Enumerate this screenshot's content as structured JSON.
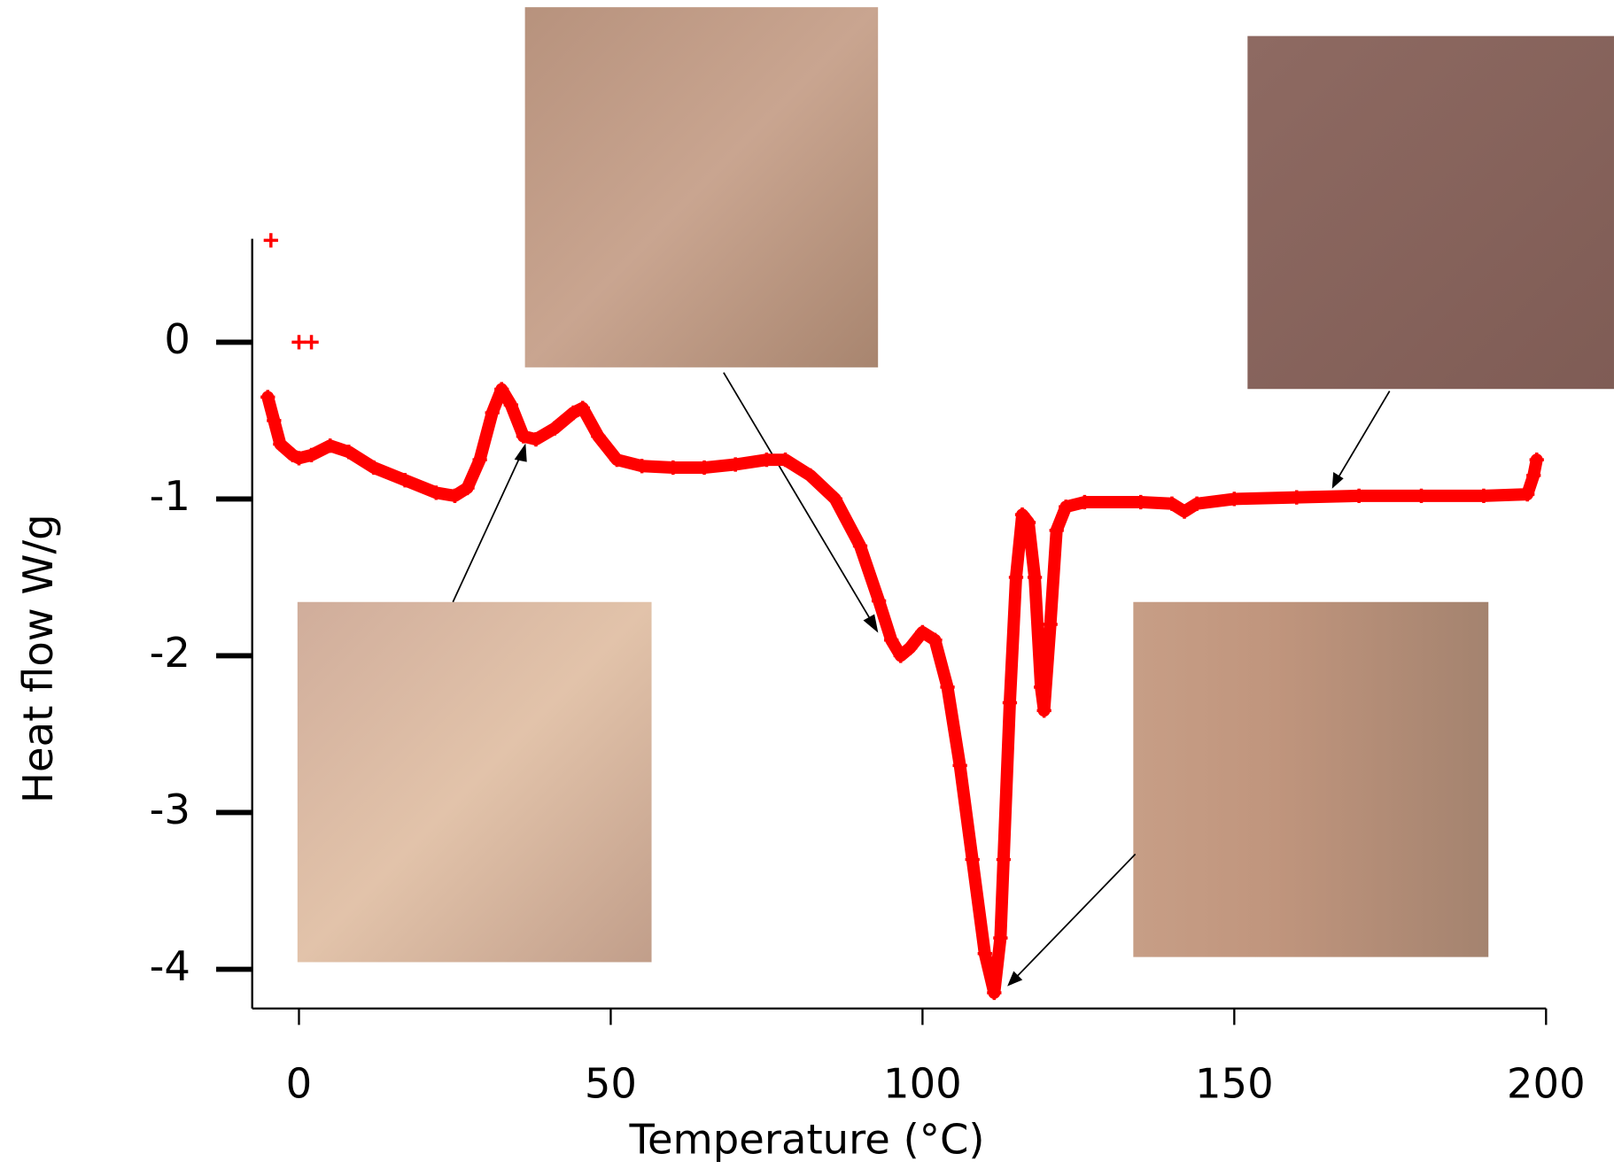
{
  "chart_data": {
    "type": "scatter",
    "xlabel": "Temperature (°C)",
    "ylabel": "Heat flow W/g",
    "xlim": [
      -7.5,
      200
    ],
    "ylim": [
      -4.25,
      0.66
    ],
    "xticks": [
      0,
      50,
      100,
      150,
      200
    ],
    "yticks": [
      -4,
      -3,
      -2,
      -1,
      0
    ],
    "marker": "+",
    "series": [
      {
        "color": "#ff0000",
        "connect": false,
        "x": [
          -4.5,
          0,
          2
        ],
        "values": [
          0.65,
          0,
          0
        ]
      },
      {
        "color": "#ff0000",
        "connect": true,
        "x": [
          -5,
          -4,
          -3,
          -1,
          0,
          2,
          5,
          8,
          12,
          17,
          22,
          25,
          27,
          29,
          31,
          32.5,
          34,
          36,
          38,
          41,
          44,
          45.5,
          48,
          51,
          55,
          60,
          65,
          70,
          75,
          78,
          82,
          86,
          90,
          93,
          95,
          96.5,
          98,
          100,
          102,
          104,
          106,
          108,
          110,
          111.5,
          112.5,
          113,
          114,
          115,
          116,
          117,
          118,
          119,
          119.5,
          120.5,
          121.5,
          123,
          126,
          135,
          140,
          142,
          144,
          150,
          160,
          170,
          180,
          190,
          197,
          198,
          198.5
        ],
        "values": [
          -0.35,
          -0.5,
          -0.65,
          -0.72,
          -0.74,
          -0.72,
          -0.66,
          -0.7,
          -0.8,
          -0.88,
          -0.96,
          -0.98,
          -0.93,
          -0.75,
          -0.45,
          -0.3,
          -0.4,
          -0.6,
          -0.62,
          -0.55,
          -0.45,
          -0.42,
          -0.6,
          -0.75,
          -0.79,
          -0.8,
          -0.8,
          -0.78,
          -0.75,
          -0.75,
          -0.85,
          -1.0,
          -1.3,
          -1.65,
          -1.9,
          -2.0,
          -1.95,
          -1.85,
          -1.9,
          -2.2,
          -2.7,
          -3.3,
          -3.9,
          -4.15,
          -3.8,
          -3.3,
          -2.3,
          -1.5,
          -1.1,
          -1.15,
          -1.5,
          -2.2,
          -2.35,
          -1.8,
          -1.2,
          -1.05,
          -1.02,
          -1.02,
          -1.03,
          -1.08,
          -1.03,
          -1.0,
          -0.99,
          -0.98,
          -0.98,
          -0.98,
          -0.97,
          -0.85,
          -0.75
        ]
      }
    ]
  }
}
